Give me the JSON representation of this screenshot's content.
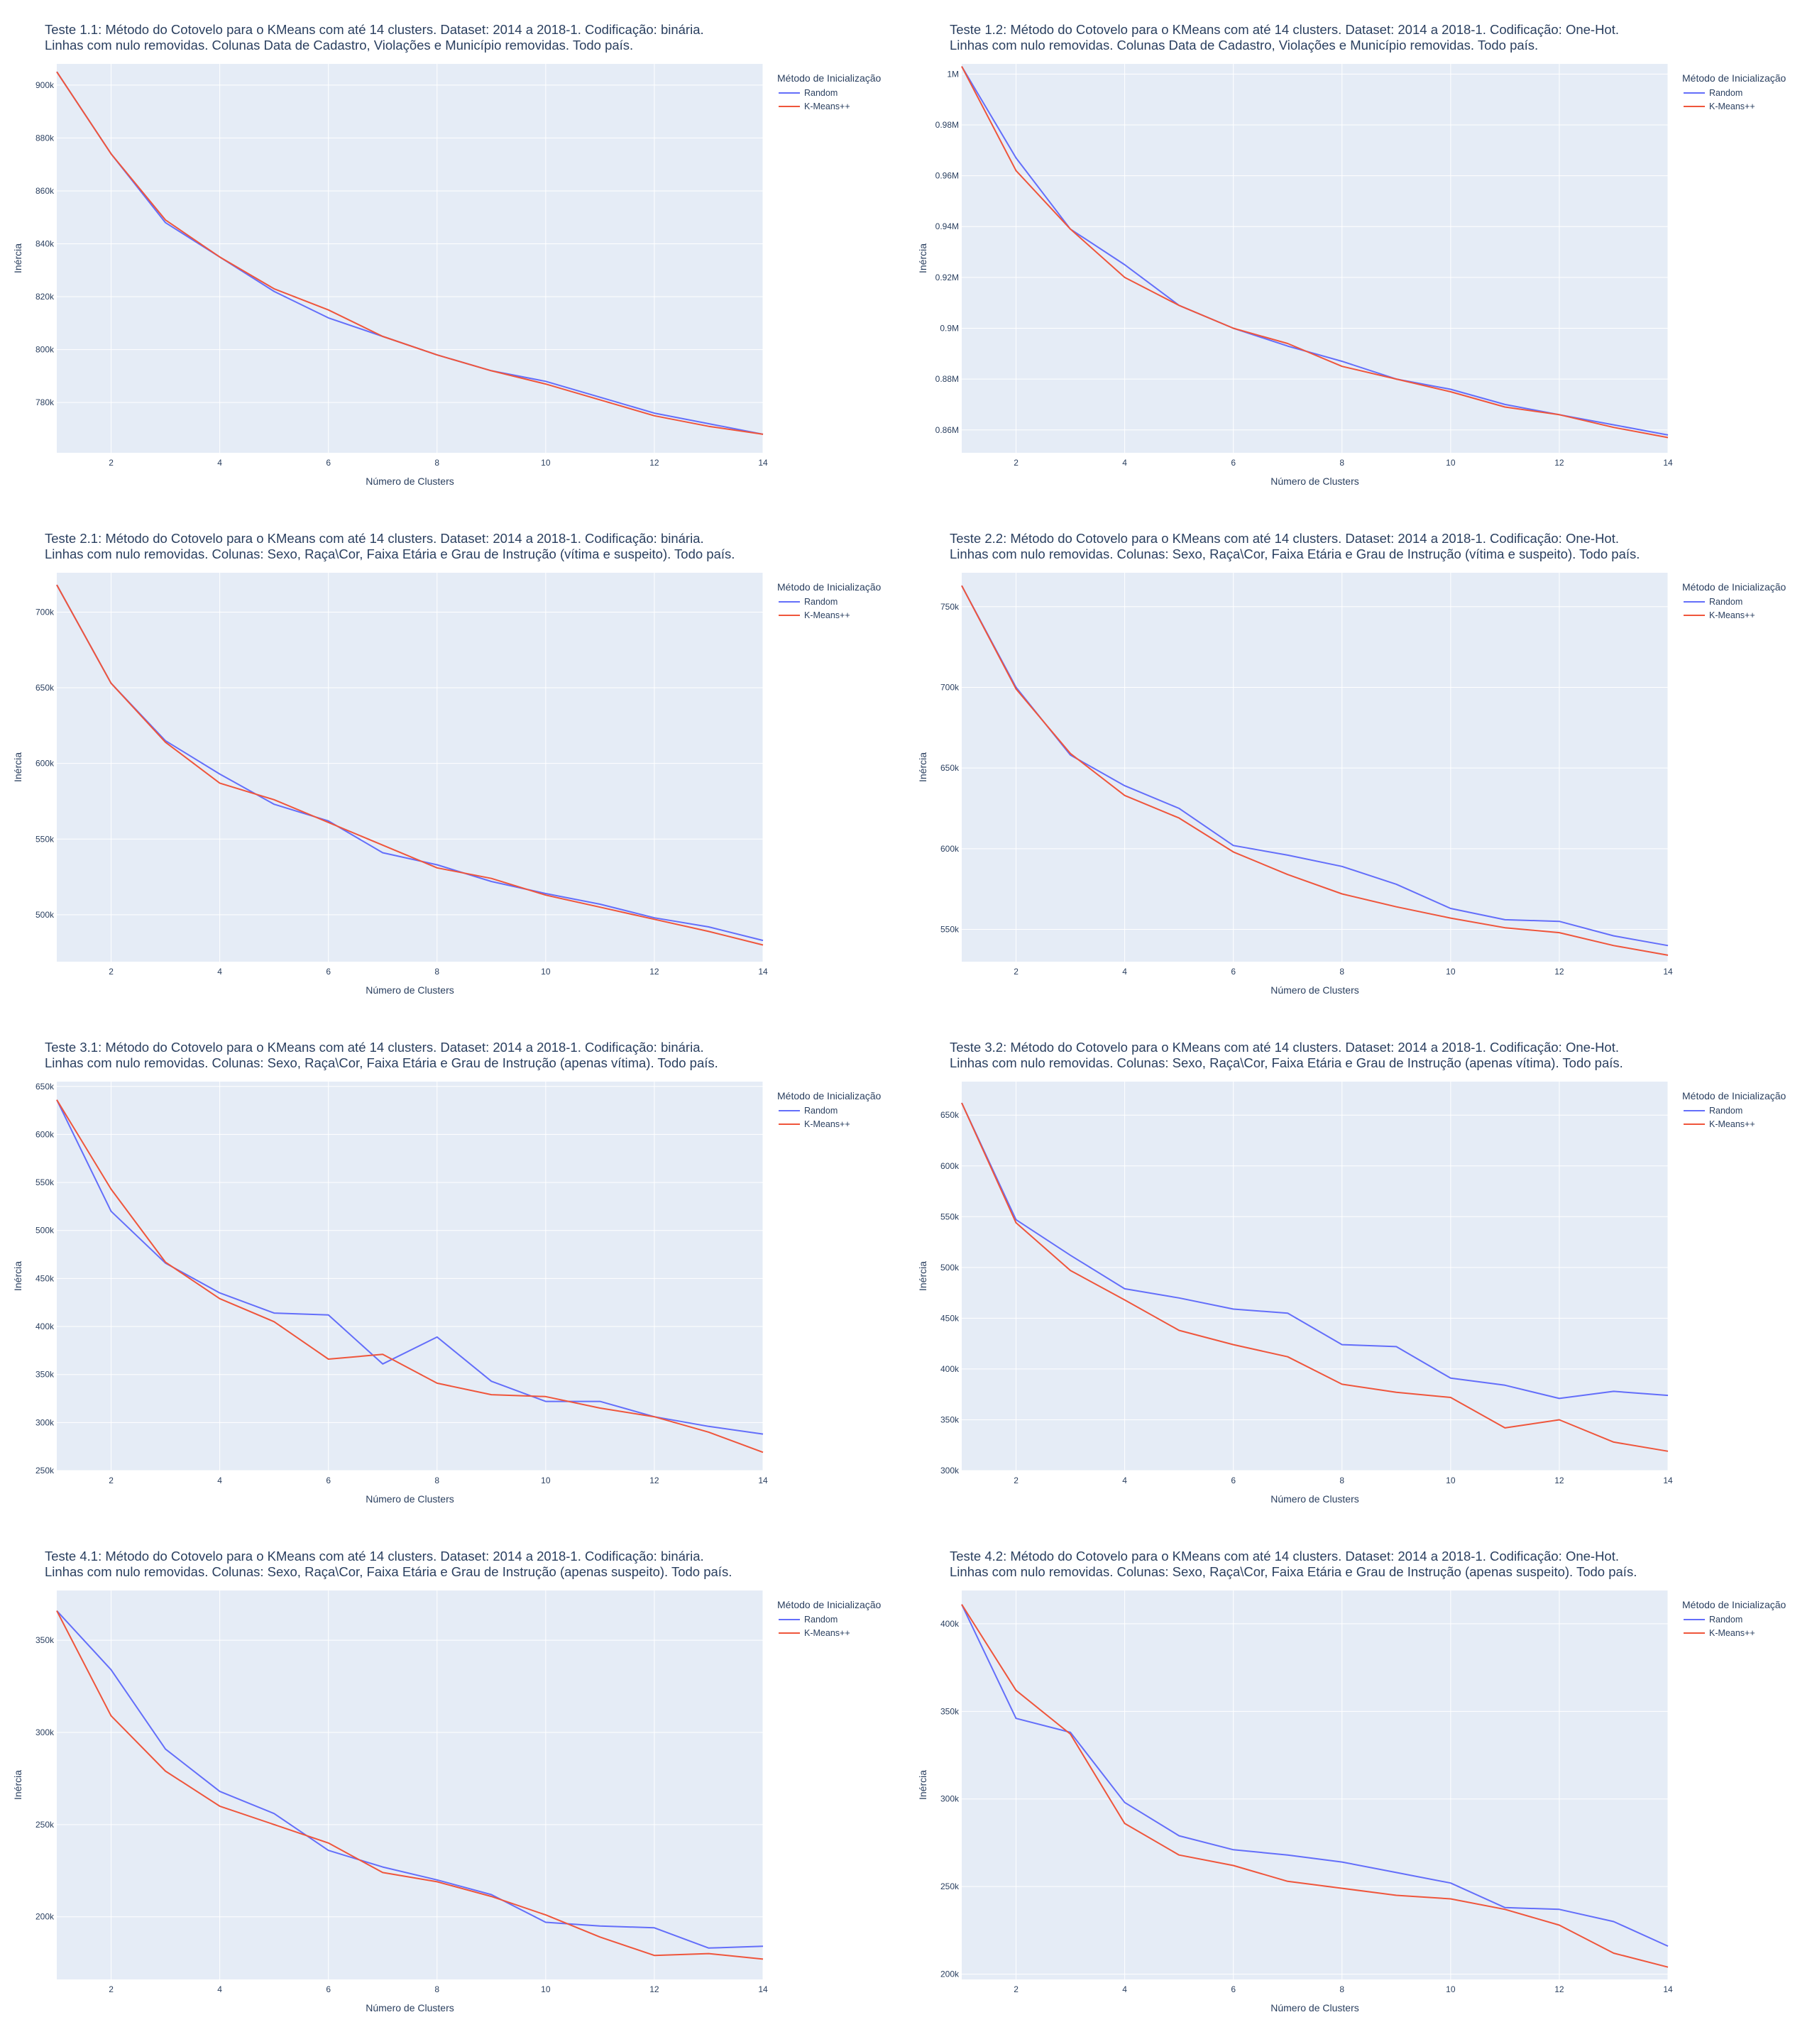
{
  "colors": {
    "plot_bg": "#e5ecf6",
    "grid": "#ffffff",
    "random": "#636efa",
    "kmeanspp": "#ef553b",
    "text": "#2a3f5f"
  },
  "legend": {
    "title": "Método de Inicialização",
    "items": [
      "Random",
      "K-Means++"
    ]
  },
  "chart_data": [
    {
      "type": "line",
      "title_lines": [
        "Teste 1.1: Método do Cotovelo para o KMeans com até 14 clusters. Dataset: 2014 a 2018-1. Codificação: binária.",
        "Linhas com nulo removidas. Colunas Data de Cadastro, Violações e Município removidas. Todo país."
      ],
      "xlabel": "Número de Clusters",
      "ylabel": "Inércia",
      "xlim": [
        1,
        14
      ],
      "ylim": [
        761000,
        908000
      ],
      "x_ticks": [
        2,
        4,
        6,
        8,
        10,
        12,
        14
      ],
      "y_ticks": [
        780000,
        800000,
        820000,
        840000,
        860000,
        880000,
        900000
      ],
      "y_tick_labels": [
        "780k",
        "800k",
        "820k",
        "840k",
        "860k",
        "880k",
        "900k"
      ],
      "x": [
        1,
        2,
        3,
        4,
        5,
        6,
        7,
        8,
        9,
        10,
        11,
        12,
        13,
        14
      ],
      "series": [
        {
          "name": "Random",
          "values": [
            905000,
            874000,
            848000,
            835000,
            822000,
            812000,
            805000,
            798000,
            792000,
            788000,
            782000,
            776000,
            772000,
            768000
          ]
        },
        {
          "name": "K-Means++",
          "values": [
            905000,
            874000,
            849000,
            835000,
            823000,
            815000,
            805000,
            798000,
            792000,
            787000,
            781000,
            775000,
            771000,
            768000
          ]
        }
      ]
    },
    {
      "type": "line",
      "title_lines": [
        "Teste 1.2: Método do Cotovelo para o KMeans com até 14 clusters. Dataset: 2014 a 2018-1. Codificação: One-Hot.",
        "Linhas com nulo removidas. Colunas Data de Cadastro, Violações e Município removidas. Todo país."
      ],
      "xlabel": "Número de Clusters",
      "ylabel": "Inércia",
      "xlim": [
        1,
        14
      ],
      "ylim": [
        851000,
        1004000
      ],
      "x_ticks": [
        2,
        4,
        6,
        8,
        10,
        12,
        14
      ],
      "y_ticks": [
        860000,
        880000,
        900000,
        920000,
        940000,
        960000,
        980000,
        1000000
      ],
      "y_tick_labels": [
        "0.86M",
        "0.88M",
        "0.9M",
        "0.92M",
        "0.94M",
        "0.96M",
        "0.98M",
        "1M"
      ],
      "x": [
        1,
        2,
        3,
        4,
        5,
        6,
        7,
        8,
        9,
        10,
        11,
        12,
        13,
        14
      ],
      "series": [
        {
          "name": "Random",
          "values": [
            1003000,
            967000,
            939000,
            925000,
            909000,
            900000,
            893000,
            887000,
            880000,
            876000,
            870000,
            866000,
            862000,
            858000
          ]
        },
        {
          "name": "K-Means++",
          "values": [
            1003000,
            962000,
            939000,
            920000,
            909000,
            900000,
            894000,
            885000,
            880000,
            875000,
            869000,
            866000,
            861000,
            857000
          ]
        }
      ]
    },
    {
      "type": "line",
      "title_lines": [
        "Teste 2.1: Método do Cotovelo para o KMeans com até 14 clusters. Dataset: 2014 a 2018-1. Codificação: binária.",
        "Linhas com nulo removidas. Colunas: Sexo, Raça\\Cor, Faixa Etária e Grau de Instrução (vítima e suspeito). Todo país."
      ],
      "xlabel": "Número de Clusters",
      "ylabel": "Inércia",
      "xlim": [
        1,
        14
      ],
      "ylim": [
        469000,
        726000
      ],
      "x_ticks": [
        2,
        4,
        6,
        8,
        10,
        12,
        14
      ],
      "y_ticks": [
        500000,
        550000,
        600000,
        650000,
        700000
      ],
      "y_tick_labels": [
        "500k",
        "550k",
        "600k",
        "650k",
        "700k"
      ],
      "x": [
        1,
        2,
        3,
        4,
        5,
        6,
        7,
        8,
        9,
        10,
        11,
        12,
        13,
        14
      ],
      "series": [
        {
          "name": "Random",
          "values": [
            718000,
            653000,
            615000,
            593000,
            573000,
            562000,
            541000,
            533000,
            522000,
            514000,
            507000,
            498000,
            492000,
            483000
          ]
        },
        {
          "name": "K-Means++",
          "values": [
            718000,
            653000,
            614000,
            587000,
            576000,
            561000,
            546000,
            531000,
            524000,
            513000,
            505000,
            497000,
            489000,
            480000
          ]
        }
      ]
    },
    {
      "type": "line",
      "title_lines": [
        "Teste 2.2: Método do Cotovelo para o KMeans com até 14 clusters. Dataset: 2014 a 2018-1. Codificação: One-Hot.",
        "Linhas com nulo removidas. Colunas: Sexo, Raça\\Cor, Faixa Etária e Grau de Instrução (vítima e suspeito). Todo país."
      ],
      "xlabel": "Número de Clusters",
      "ylabel": "Inércia",
      "xlim": [
        1,
        14
      ],
      "ylim": [
        530000,
        771000
      ],
      "x_ticks": [
        2,
        4,
        6,
        8,
        10,
        12,
        14
      ],
      "y_ticks": [
        550000,
        600000,
        650000,
        700000,
        750000
      ],
      "y_tick_labels": [
        "550k",
        "600k",
        "650k",
        "700k",
        "750k"
      ],
      "x": [
        1,
        2,
        3,
        4,
        5,
        6,
        7,
        8,
        9,
        10,
        11,
        12,
        13,
        14
      ],
      "series": [
        {
          "name": "Random",
          "values": [
            763000,
            700000,
            658000,
            639000,
            625000,
            602000,
            596000,
            589000,
            578000,
            563000,
            556000,
            555000,
            546000,
            540000
          ]
        },
        {
          "name": "K-Means++",
          "values": [
            763000,
            699000,
            659000,
            633000,
            619000,
            598000,
            584000,
            572000,
            564000,
            557000,
            551000,
            548000,
            540000,
            534000
          ]
        }
      ]
    },
    {
      "type": "line",
      "title_lines": [
        "Teste 3.1: Método do Cotovelo para o KMeans com até 14 clusters. Dataset: 2014 a 2018-1. Codificação: binária.",
        "Linhas com nulo removidas. Colunas: Sexo, Raça\\Cor, Faixa Etária e Grau de Instrução (apenas vítima). Todo país."
      ],
      "xlabel": "Número de Clusters",
      "ylabel": "Inércia",
      "xlim": [
        1,
        14
      ],
      "ylim": [
        250000,
        655000
      ],
      "x_ticks": [
        2,
        4,
        6,
        8,
        10,
        12,
        14
      ],
      "y_ticks": [
        250000,
        300000,
        350000,
        400000,
        450000,
        500000,
        550000,
        600000,
        650000
      ],
      "y_tick_labels": [
        "250k",
        "300k",
        "350k",
        "400k",
        "450k",
        "500k",
        "550k",
        "600k",
        "650k"
      ],
      "x": [
        1,
        2,
        3,
        4,
        5,
        6,
        7,
        8,
        9,
        10,
        11,
        12,
        13,
        14
      ],
      "series": [
        {
          "name": "Random",
          "values": [
            636000,
            520000,
            466000,
            435000,
            414000,
            412000,
            361000,
            389000,
            343000,
            322000,
            322000,
            306000,
            296000,
            288000
          ]
        },
        {
          "name": "K-Means++",
          "values": [
            636000,
            543000,
            467000,
            429000,
            405000,
            366000,
            371000,
            341000,
            329000,
            327000,
            315000,
            306000,
            290000,
            269000
          ]
        }
      ]
    },
    {
      "type": "line",
      "title_lines": [
        "Teste 3.2: Método do Cotovelo para o KMeans com até 14 clusters. Dataset: 2014 a 2018-1. Codificação: One-Hot.",
        "Linhas com nulo removidas. Colunas: Sexo, Raça\\Cor, Faixa Etária e Grau de Instrução (apenas vítima). Todo país."
      ],
      "xlabel": "Número de Clusters",
      "ylabel": "Inércia",
      "xlim": [
        1,
        14
      ],
      "ylim": [
        300000,
        683000
      ],
      "x_ticks": [
        2,
        4,
        6,
        8,
        10,
        12,
        14
      ],
      "y_ticks": [
        300000,
        350000,
        400000,
        450000,
        500000,
        550000,
        600000,
        650000
      ],
      "y_tick_labels": [
        "300k",
        "350k",
        "400k",
        "450k",
        "500k",
        "550k",
        "600k",
        "650k"
      ],
      "x": [
        1,
        2,
        3,
        4,
        5,
        6,
        7,
        8,
        9,
        10,
        11,
        12,
        13,
        14
      ],
      "series": [
        {
          "name": "Random",
          "values": [
            662000,
            547000,
            512000,
            479000,
            470000,
            459000,
            455000,
            424000,
            422000,
            391000,
            384000,
            371000,
            378000,
            374000
          ]
        },
        {
          "name": "K-Means++",
          "values": [
            662000,
            544000,
            497000,
            468000,
            438000,
            424000,
            412000,
            385000,
            377000,
            372000,
            342000,
            350000,
            328000,
            319000
          ]
        }
      ]
    },
    {
      "type": "line",
      "title_lines": [
        "Teste 4.1: Método do Cotovelo para o KMeans com até 14 clusters. Dataset: 2014 a 2018-1. Codificação: binária.",
        "Linhas com nulo removidas. Colunas: Sexo, Raça\\Cor, Faixa Etária e Grau de Instrução (apenas suspeito). Todo país."
      ],
      "xlabel": "Número de Clusters",
      "ylabel": "Inércia",
      "xlim": [
        1,
        14
      ],
      "ylim": [
        166000,
        377000
      ],
      "x_ticks": [
        2,
        4,
        6,
        8,
        10,
        12,
        14
      ],
      "y_ticks": [
        200000,
        250000,
        300000,
        350000
      ],
      "y_tick_labels": [
        "200k",
        "250k",
        "300k",
        "350k"
      ],
      "x": [
        1,
        2,
        3,
        4,
        5,
        6,
        7,
        8,
        9,
        10,
        11,
        12,
        13,
        14
      ],
      "series": [
        {
          "name": "Random",
          "values": [
            366000,
            334000,
            291000,
            268000,
            256000,
            236000,
            227000,
            220000,
            212000,
            197000,
            195000,
            194000,
            183000,
            184000
          ]
        },
        {
          "name": "K-Means++",
          "values": [
            366000,
            309000,
            279000,
            260000,
            250000,
            240000,
            224000,
            219000,
            211000,
            201000,
            189000,
            179000,
            180000,
            177000
          ]
        }
      ]
    },
    {
      "type": "line",
      "title_lines": [
        "Teste 4.2: Método do Cotovelo para o KMeans com até 14 clusters. Dataset: 2014 a 2018-1. Codificação: One-Hot.",
        "Linhas com nulo removidas. Colunas: Sexo, Raça\\Cor, Faixa Etária e Grau de Instrução (apenas suspeito). Todo país."
      ],
      "xlabel": "Número de Clusters",
      "ylabel": "Inércia",
      "xlim": [
        1,
        14
      ],
      "ylim": [
        197000,
        419000
      ],
      "x_ticks": [
        2,
        4,
        6,
        8,
        10,
        12,
        14
      ],
      "y_ticks": [
        200000,
        250000,
        300000,
        350000,
        400000
      ],
      "y_tick_labels": [
        "200k",
        "250k",
        "300k",
        "350k",
        "400k"
      ],
      "x": [
        1,
        2,
        3,
        4,
        5,
        6,
        7,
        8,
        9,
        10,
        11,
        12,
        13,
        14
      ],
      "series": [
        {
          "name": "Random",
          "values": [
            411000,
            346000,
            338000,
            298000,
            279000,
            271000,
            268000,
            264000,
            258000,
            252000,
            238000,
            237000,
            230000,
            216000
          ]
        },
        {
          "name": "K-Means++",
          "values": [
            411000,
            362000,
            337000,
            286000,
            268000,
            262000,
            253000,
            249000,
            245000,
            243000,
            237000,
            228000,
            212000,
            204000
          ]
        }
      ]
    }
  ]
}
